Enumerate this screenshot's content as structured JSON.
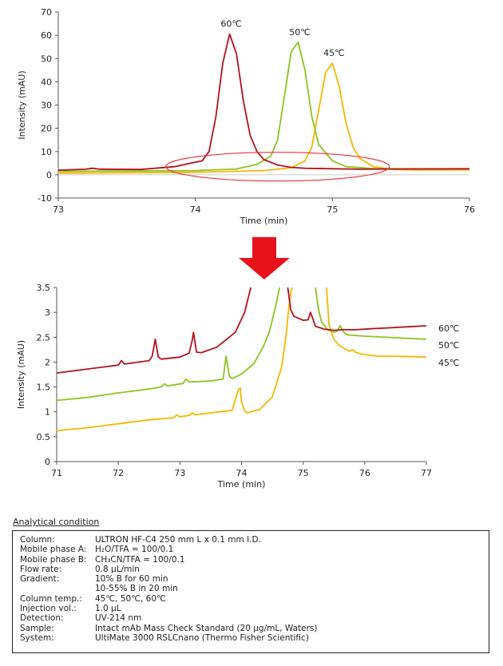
{
  "chart_data": [
    {
      "type": "line",
      "title": "",
      "xlabel": "Time (min)",
      "ylabel": "Intensity (mAU)",
      "xlim": [
        73,
        76
      ],
      "ylim": [
        -10,
        70
      ],
      "xticks": [
        73,
        74,
        75,
        76
      ],
      "yticks": [
        -10,
        0,
        10,
        20,
        30,
        40,
        50,
        60,
        70
      ],
      "annotations": [
        "60℃",
        "50℃",
        "45℃"
      ],
      "highlight_ellipse": {
        "center_time": 74.6,
        "center_intensity": 3.5
      },
      "series": [
        {
          "name": "60℃",
          "color": "#b3121f",
          "x": [
            73.0,
            73.2,
            73.25,
            73.3,
            73.6,
            73.85,
            73.95,
            74.05,
            74.1,
            74.15,
            74.2,
            74.25,
            74.3,
            74.35,
            74.4,
            74.45,
            74.5,
            74.6,
            74.7,
            74.8,
            75.0,
            75.2,
            75.5,
            76.0
          ],
          "y": [
            2.0,
            2.4,
            2.8,
            2.4,
            2.3,
            3.5,
            4.8,
            6.0,
            10.0,
            25.0,
            48.0,
            60.5,
            52.0,
            32.0,
            17.0,
            10.0,
            6.5,
            4.2,
            3.2,
            2.8,
            2.6,
            2.4,
            2.5,
            2.6
          ]
        },
        {
          "name": "50℃",
          "color": "#8fc31f",
          "x": [
            73.0,
            73.5,
            74.0,
            74.3,
            74.45,
            74.55,
            74.6,
            74.65,
            74.7,
            74.75,
            74.8,
            74.85,
            74.9,
            75.0,
            75.1,
            75.3,
            75.6,
            76.0
          ],
          "y": [
            1.5,
            1.6,
            1.8,
            2.5,
            4.5,
            8.0,
            15.0,
            34.0,
            53.0,
            57.0,
            45.0,
            25.0,
            13.0,
            6.0,
            3.5,
            2.7,
            2.5,
            2.5
          ]
        },
        {
          "name": "45℃",
          "color": "#f5b800",
          "x": [
            73.0,
            73.5,
            74.0,
            74.5,
            74.7,
            74.8,
            74.85,
            74.9,
            74.95,
            75.0,
            75.05,
            75.1,
            75.15,
            75.2,
            75.3,
            75.45,
            75.6,
            76.0
          ],
          "y": [
            0.7,
            0.9,
            1.1,
            1.8,
            3.0,
            6.0,
            12.0,
            28.0,
            44.0,
            48.0,
            38.0,
            22.0,
            12.0,
            7.0,
            3.5,
            2.3,
            2.1,
            2.1
          ]
        }
      ]
    },
    {
      "type": "line",
      "title": "",
      "xlabel": "Time (min)",
      "ylabel": "Intensity (mAU)",
      "xlim": [
        71,
        77
      ],
      "ylim": [
        0,
        3.5
      ],
      "xticks": [
        71,
        72,
        73,
        74,
        75,
        76,
        77
      ],
      "yticks": [
        0,
        0.5,
        1,
        1.5,
        2,
        2.5,
        3,
        3.5
      ],
      "legend_position": "right",
      "series": [
        {
          "name": "60℃",
          "color": "#b3121f",
          "segments": [
            {
              "x": [
                71.0,
                71.5,
                72.0,
                72.05,
                72.1,
                72.5,
                72.55,
                72.6,
                72.65,
                72.7,
                73.0,
                73.15,
                73.2,
                73.22,
                73.27,
                73.35,
                73.6,
                73.9,
                74.05,
                74.15
              ],
              "y": [
                1.78,
                1.86,
                1.94,
                2.03,
                1.96,
                2.03,
                2.12,
                2.46,
                2.1,
                2.06,
                2.1,
                2.18,
                2.44,
                2.6,
                2.2,
                2.19,
                2.3,
                2.6,
                3.0,
                3.5
              ]
            },
            {
              "x": [
                74.75,
                74.8,
                74.85,
                75.0,
                75.08,
                75.12,
                75.2,
                75.35,
                75.5,
                75.65,
                75.85,
                76.1,
                76.4,
                76.7,
                77.0
              ],
              "y": [
                3.5,
                3.05,
                2.92,
                2.84,
                2.85,
                3.0,
                2.72,
                2.66,
                2.64,
                2.65,
                2.65,
                2.67,
                2.69,
                2.71,
                2.73
              ]
            }
          ]
        },
        {
          "name": "50℃",
          "color": "#8fc31f",
          "segments": [
            {
              "x": [
                71.0,
                71.5,
                72.0,
                72.5,
                72.7,
                72.75,
                72.8,
                73.05,
                73.1,
                73.15,
                73.5,
                73.7,
                73.75,
                73.8,
                73.85,
                74.0,
                74.2,
                74.35,
                74.45,
                74.5,
                74.55,
                74.6,
                74.62
              ],
              "y": [
                1.23,
                1.29,
                1.38,
                1.46,
                1.5,
                1.56,
                1.52,
                1.57,
                1.66,
                1.6,
                1.62,
                1.66,
                2.12,
                1.72,
                1.67,
                1.76,
                1.97,
                2.3,
                2.6,
                2.85,
                3.1,
                3.4,
                3.5
              ]
            },
            {
              "x": [
                75.2,
                75.25,
                75.3,
                75.4,
                75.5,
                75.55,
                75.6,
                75.65,
                75.7,
                76.0,
                76.5,
                77.0
              ],
              "y": [
                3.5,
                3.05,
                2.8,
                2.65,
                2.6,
                2.62,
                2.73,
                2.62,
                2.55,
                2.52,
                2.49,
                2.46
              ]
            }
          ]
        },
        {
          "name": "45℃",
          "color": "#f5b800",
          "segments": [
            {
              "x": [
                71.0,
                71.5,
                72.0,
                72.5,
                72.9,
                72.95,
                73.0,
                73.15,
                73.2,
                73.25,
                73.5,
                73.85,
                73.9,
                73.95,
                73.98,
                74.0,
                74.05,
                74.1,
                74.3,
                74.5,
                74.65,
                74.72,
                74.76,
                74.8,
                74.82
              ],
              "y": [
                0.62,
                0.68,
                0.76,
                0.84,
                0.88,
                0.94,
                0.9,
                0.93,
                0.98,
                0.94,
                0.98,
                1.03,
                1.25,
                1.45,
                1.48,
                1.2,
                1.02,
                0.98,
                1.05,
                1.3,
                1.9,
                2.5,
                3.0,
                3.4,
                3.5
              ]
            },
            {
              "x": [
                75.38,
                75.42,
                75.5,
                75.6,
                75.75,
                75.8,
                75.85,
                75.95,
                76.2,
                76.5,
                77.0
              ],
              "y": [
                3.5,
                2.75,
                2.45,
                2.32,
                2.22,
                2.25,
                2.2,
                2.16,
                2.12,
                2.12,
                2.1
              ]
            }
          ]
        }
      ]
    }
  ],
  "arrow": {
    "color": "#e8121c"
  },
  "condition": {
    "title": "Analytical condition",
    "rows": [
      {
        "label": "Column:",
        "value": "ULTRON HF-C4  250 mm L x 0.1 mm I.D."
      },
      {
        "label": "Mobile phase A:",
        "value": "H₂O/TFA = 100/0.1"
      },
      {
        "label": "Mobile phase B:",
        "value": "CH₃CN/TFA = 100/0.1"
      },
      {
        "label": "Flow rate:",
        "value": "0.8 μL/min"
      },
      {
        "label": "Gradient:",
        "value": "10% B for 60 min"
      },
      {
        "label": "",
        "value": "10-55% B in 20 min"
      },
      {
        "label": "Column temp.:",
        "value": "45℃, 50℃, 60℃"
      },
      {
        "label": "Injection vol.:",
        "value": "1.0 μL"
      },
      {
        "label": "Detection:",
        "value": "UV-214 nm"
      },
      {
        "label": "Sample:",
        "value": "Intact mAb Mass Check Standard (20 μg/mL, Waters)"
      },
      {
        "label": "System:",
        "value": "UltiMate 3000 RSLCnano (Thermo Fisher Scientific)"
      }
    ]
  }
}
